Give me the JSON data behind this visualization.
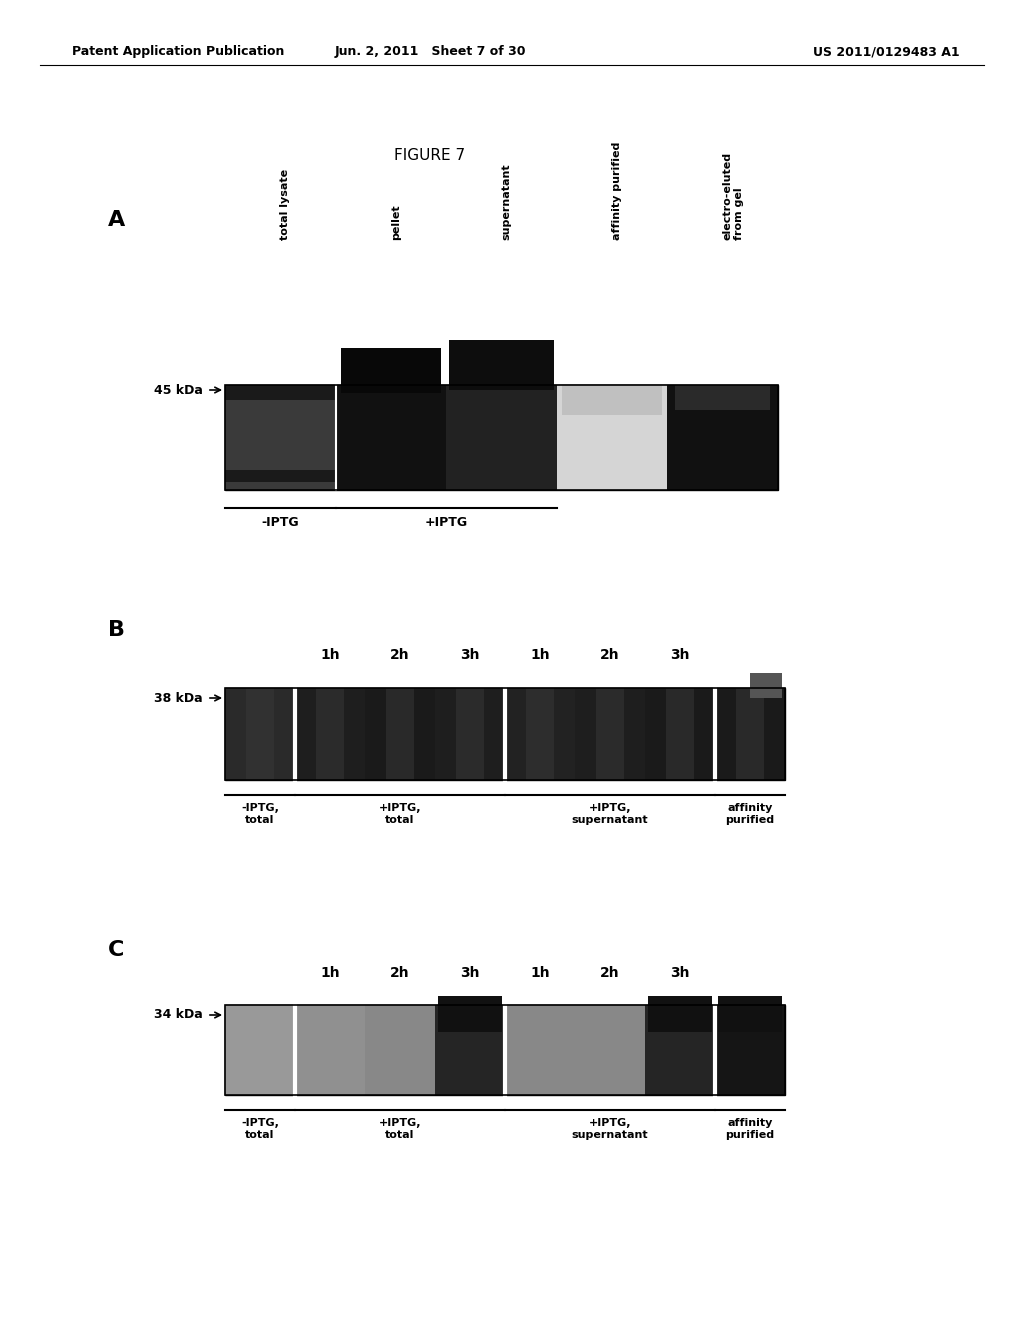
{
  "header_left": "Patent Application Publication",
  "header_mid": "Jun. 2, 2011   Sheet 7 of 30",
  "header_right": "US 2011/0129483 A1",
  "figure_title": "FIGURE 7",
  "panel_A": {
    "label": "A",
    "kda_label": "45 kDa",
    "col_labels": [
      "total lysate",
      "pellet",
      "supernatant",
      "affinity purified",
      "electro-eluted\nfrom gel"
    ]
  },
  "panel_B": {
    "label": "B",
    "kda_label": "38 kDa",
    "time_labels": [
      "1h",
      "2h",
      "3h",
      "1h",
      "2h",
      "3h"
    ],
    "group_labels": [
      "-IPTG,\ntotal",
      "+IPTG,\ntotal",
      "+IPTG,\nsupernatant",
      "affinity\npurified"
    ]
  },
  "panel_C": {
    "label": "C",
    "kda_label": "34 kDa",
    "time_labels": [
      "1h",
      "2h",
      "3h",
      "1h",
      "2h",
      "3h"
    ],
    "group_labels": [
      "-IPTG,\ntotal",
      "+IPTG,\ntotal",
      "+IPTG,\nsupernatant",
      "affinity\npurified"
    ]
  }
}
